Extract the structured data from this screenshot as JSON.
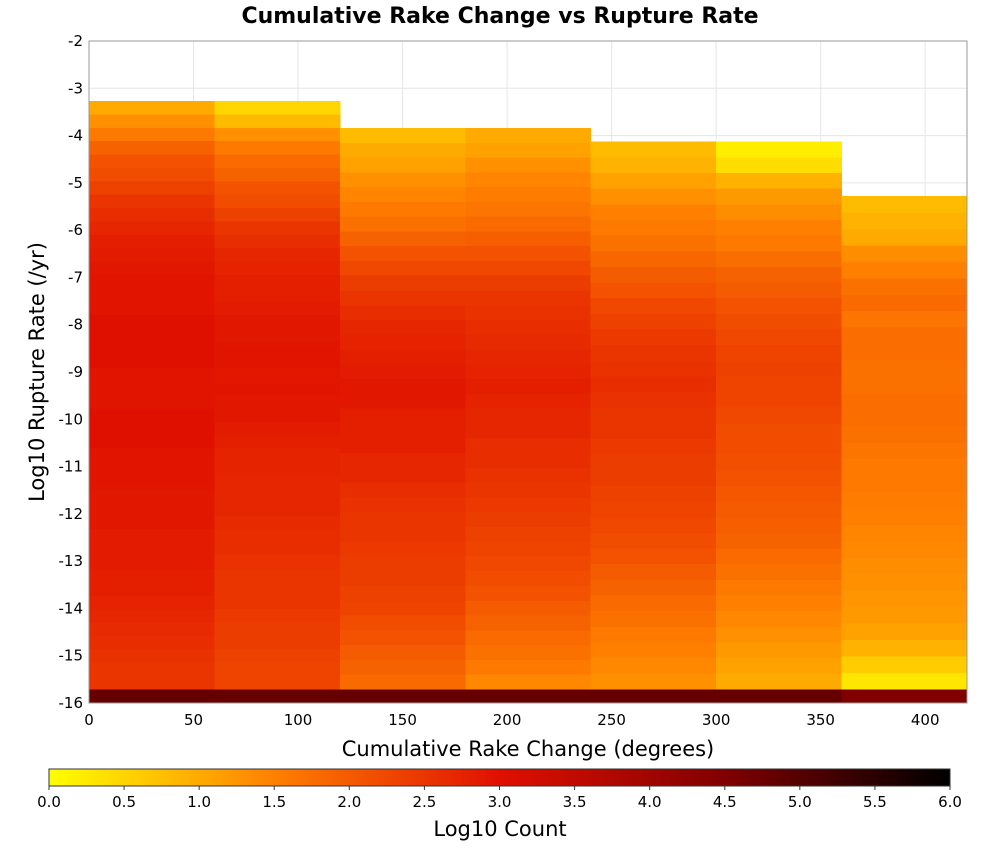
{
  "chart_data": {
    "type": "heatmap",
    "title": "Cumulative Rake Change vs Rupture Rate",
    "xlabel": "Cumulative Rake Change (degrees)",
    "ylabel": "Log10 Rupture Rate (/yr)",
    "xlim": [
      0,
      420
    ],
    "ylim": [
      -16,
      -2
    ],
    "x_ticks": [
      "0",
      "50",
      "100",
      "150",
      "200",
      "250",
      "300",
      "350",
      "400"
    ],
    "y_ticks": [
      "-2",
      "-3",
      "-4",
      "-5",
      "-6",
      "-7",
      "-8",
      "-9",
      "-10",
      "-11",
      "-12",
      "-13",
      "-14",
      "-15",
      "-16"
    ],
    "x_bin_edges": [
      0,
      60,
      120,
      180,
      240,
      300,
      360,
      420
    ],
    "y_bin_size": 0.2875,
    "colorbar": {
      "label": "Log10 Count",
      "range": [
        0,
        6
      ],
      "ticks": [
        "0.0",
        "0.5",
        "1.0",
        "1.5",
        "2.0",
        "2.5",
        "3.0",
        "3.5",
        "4.0",
        "4.5",
        "5.0",
        "5.5",
        "6.0"
      ],
      "colors": [
        "#ffff00",
        "#ff8000",
        "#e01000",
        "#800000",
        "#000000"
      ]
    },
    "columns": [
      {
        "x_range": [
          0,
          60
        ],
        "y_top": -3.27,
        "values_top_to_bottom": [
          1.0,
          1.3,
          1.6,
          1.9,
          2.1,
          2.2,
          2.35,
          2.5,
          2.6,
          2.7,
          2.8,
          2.85,
          2.9,
          2.95,
          2.95,
          2.95,
          3.0,
          3.0,
          3.0,
          3.0,
          2.95,
          2.95,
          2.95,
          3.0,
          3.0,
          3.0,
          2.95,
          2.95,
          2.95,
          2.9,
          2.9,
          2.9,
          2.85,
          2.85,
          2.85,
          2.8,
          2.8,
          2.75,
          2.7,
          2.65,
          2.6,
          2.55,
          2.5,
          2.5
        ],
        "bottom_row_value": 4.8
      },
      {
        "x_range": [
          60,
          120
        ],
        "y_top": -3.27,
        "values_top_to_bottom": [
          0.5,
          0.8,
          1.3,
          1.6,
          1.8,
          1.9,
          2.1,
          2.2,
          2.35,
          2.5,
          2.6,
          2.7,
          2.75,
          2.8,
          2.8,
          2.85,
          2.9,
          2.9,
          2.95,
          2.95,
          2.9,
          2.95,
          2.9,
          2.9,
          2.85,
          2.8,
          2.75,
          2.75,
          2.7,
          2.7,
          2.7,
          2.65,
          2.6,
          2.6,
          2.55,
          2.5,
          2.5,
          2.5,
          2.45,
          2.4,
          2.4,
          2.35,
          2.3,
          2.3
        ],
        "bottom_row_value": 4.8
      },
      {
        "x_range": [
          120,
          180
        ],
        "y_top": -3.84,
        "values_top_to_bottom": [
          0.8,
          1.0,
          1.1,
          1.3,
          1.45,
          1.6,
          1.7,
          1.9,
          2.1,
          2.25,
          2.4,
          2.5,
          2.6,
          2.7,
          2.75,
          2.8,
          2.85,
          2.9,
          2.9,
          2.8,
          2.8,
          2.8,
          2.7,
          2.7,
          2.6,
          2.55,
          2.5,
          2.5,
          2.45,
          2.4,
          2.4,
          2.35,
          2.3,
          2.2,
          2.1,
          2.0,
          1.9,
          1.8
        ],
        "bottom_row_value": 4.8
      },
      {
        "x_range": [
          180,
          240
        ],
        "y_top": -3.84,
        "values_top_to_bottom": [
          1.0,
          1.1,
          1.3,
          1.45,
          1.55,
          1.65,
          1.8,
          1.95,
          2.1,
          2.25,
          2.4,
          2.5,
          2.55,
          2.6,
          2.65,
          2.7,
          2.75,
          2.8,
          2.75,
          2.7,
          2.7,
          2.6,
          2.6,
          2.55,
          2.5,
          2.45,
          2.4,
          2.35,
          2.3,
          2.25,
          2.2,
          2.1,
          2.0,
          1.9,
          1.8,
          1.7,
          1.6,
          1.4
        ],
        "bottom_row_value": 4.8
      },
      {
        "x_range": [
          240,
          300
        ],
        "y_top": -4.13,
        "values_top_to_bottom": [
          0.8,
          0.9,
          1.1,
          1.3,
          1.5,
          1.6,
          1.7,
          1.85,
          2.0,
          2.1,
          2.25,
          2.35,
          2.45,
          2.5,
          2.55,
          2.6,
          2.55,
          2.5,
          2.5,
          2.45,
          2.4,
          2.4,
          2.35,
          2.3,
          2.25,
          2.2,
          2.1,
          2.0,
          1.9,
          1.8,
          1.7,
          1.6,
          1.5,
          1.4,
          1.3
        ],
        "bottom_row_value": 4.8
      },
      {
        "x_range": [
          300,
          360
        ],
        "y_top": -4.13,
        "values_top_to_bottom": [
          0.2,
          0.4,
          0.9,
          1.2,
          1.35,
          1.5,
          1.6,
          1.75,
          1.9,
          2.0,
          2.1,
          2.2,
          2.25,
          2.3,
          2.35,
          2.3,
          2.3,
          2.25,
          2.2,
          2.2,
          2.15,
          2.1,
          2.05,
          2.0,
          1.95,
          1.9,
          1.8,
          1.7,
          1.6,
          1.5,
          1.4,
          1.3,
          1.2,
          1.1,
          1.0
        ],
        "bottom_row_value": 4.8
      },
      {
        "x_range": [
          360,
          420
        ],
        "y_top": -5.28,
        "values_top_to_bottom": [
          0.8,
          0.9,
          1.0,
          1.35,
          1.5,
          1.7,
          1.8,
          1.65,
          1.75,
          1.75,
          1.7,
          1.7,
          1.75,
          1.75,
          1.7,
          1.65,
          1.6,
          1.6,
          1.55,
          1.5,
          1.45,
          1.4,
          1.35,
          1.3,
          1.25,
          1.2,
          1.1,
          0.9,
          0.6,
          0.3
        ],
        "bottom_row_value": 4.5
      }
    ]
  }
}
